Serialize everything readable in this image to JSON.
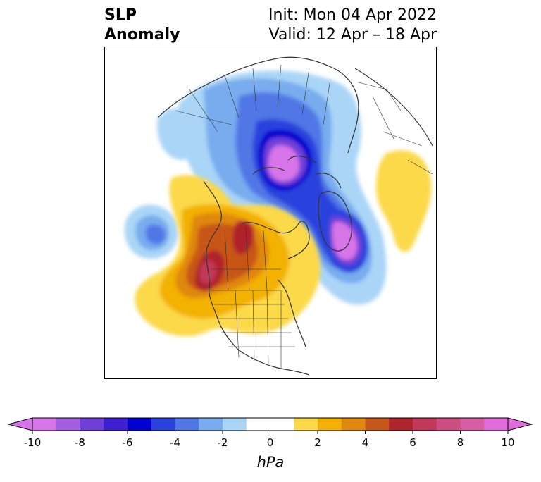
{
  "header": {
    "variable_line1": "SLP",
    "variable_line2": "Anomaly",
    "init_text": "Init: Mon 04 Apr 2022",
    "valid_text": "Valid: 12 Apr – 18 Apr"
  },
  "colorbar": {
    "units": "hPa",
    "ticks": [
      "-10",
      "-8",
      "-6",
      "-4",
      "-2",
      "0",
      "2",
      "4",
      "6",
      "8",
      "10"
    ],
    "min_value": -10,
    "max_value": 10,
    "level_step": 1,
    "colors": [
      "#d774e8",
      "#a35fe0",
      "#6f3fd8",
      "#3e1fd2",
      "#0000d0",
      "#2a42dd",
      "#5177e6",
      "#78acef",
      "#aad5f7",
      "#ffffff",
      "#ffffff",
      "#fbd949",
      "#f3b106",
      "#e0880e",
      "#c75718",
      "#b0242c",
      "#c13858",
      "#cc4d80",
      "#d55da5",
      "#df6cd8"
    ],
    "extend": "both"
  },
  "map": {
    "projection": "north-polar-stereographic",
    "region": "Northern Hemisphere / North America"
  }
}
